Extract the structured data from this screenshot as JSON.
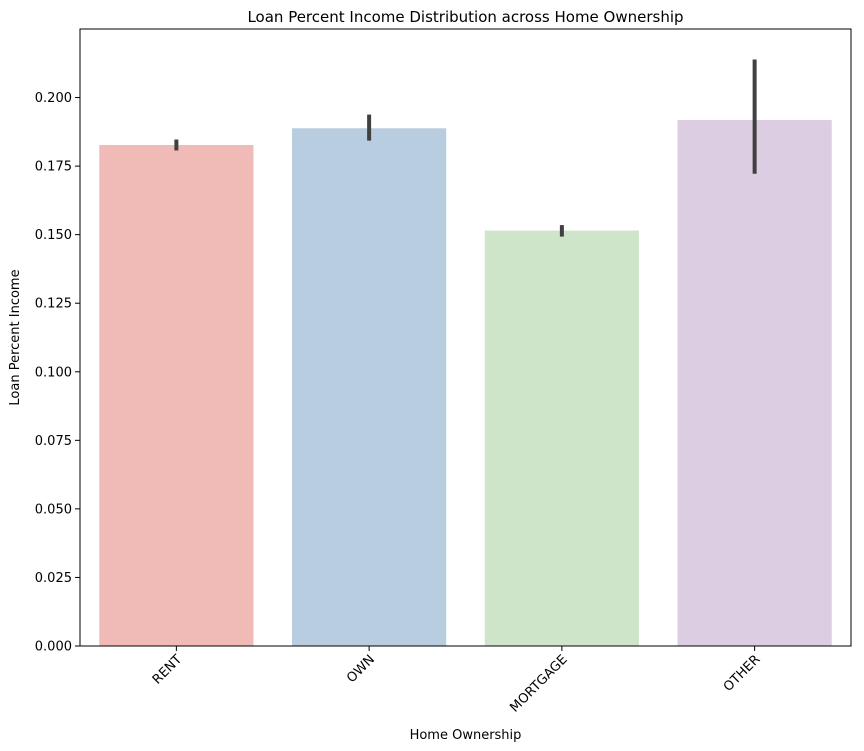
{
  "chart_data": {
    "type": "bar",
    "title": "Loan Percent Income Distribution across Home Ownership",
    "xlabel": "Home Ownership",
    "ylabel": "Loan Percent Income",
    "categories": [
      "RENT",
      "OWN",
      "MORTGAGE",
      "OTHER"
    ],
    "values": [
      0.1827,
      0.1888,
      0.1515,
      0.1918
    ],
    "error_bars": [
      [
        0.1807,
        0.1847
      ],
      [
        0.1843,
        0.1938
      ],
      [
        0.1493,
        0.1535
      ],
      [
        0.1722,
        0.2139
      ]
    ],
    "colors": [
      "#f0bbb7",
      "#b9cde0",
      "#cfe5ca",
      "#dccde2"
    ],
    "error_color": "#404040",
    "ylim": [
      0,
      0.225
    ],
    "yticks": [
      0.0,
      0.025,
      0.05,
      0.075,
      0.1,
      0.125,
      0.15,
      0.175,
      0.2
    ],
    "ytick_labels": [
      "0.000",
      "0.025",
      "0.050",
      "0.075",
      "0.100",
      "0.125",
      "0.150",
      "0.175",
      "0.200"
    ],
    "grid": false,
    "legend": "none"
  }
}
